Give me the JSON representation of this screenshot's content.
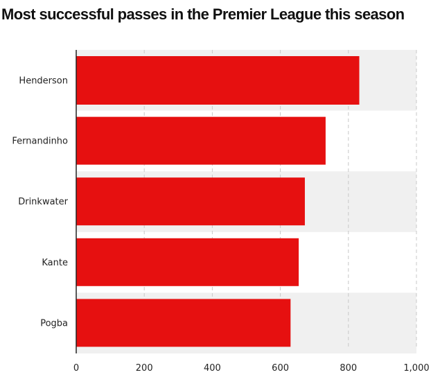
{
  "chart_data": {
    "type": "bar",
    "orientation": "horizontal",
    "title": "Most successful passes in the Premier League this season",
    "categories": [
      "Henderson",
      "Fernandinho",
      "Drinkwater",
      "Kante",
      "Pogba"
    ],
    "values": [
      832,
      733,
      672,
      654,
      630
    ],
    "xlim": [
      0,
      1000
    ],
    "xticks": [
      "0",
      "200",
      "400",
      "600",
      "800",
      "1,000"
    ],
    "xtick_values": [
      0,
      200,
      400,
      600,
      800,
      1000
    ],
    "grid": "vertical dashed",
    "colors": {
      "bar": "#e61010",
      "band": "#f0f0f0",
      "grid": "#c8c8c8",
      "axis": "#222222"
    }
  }
}
